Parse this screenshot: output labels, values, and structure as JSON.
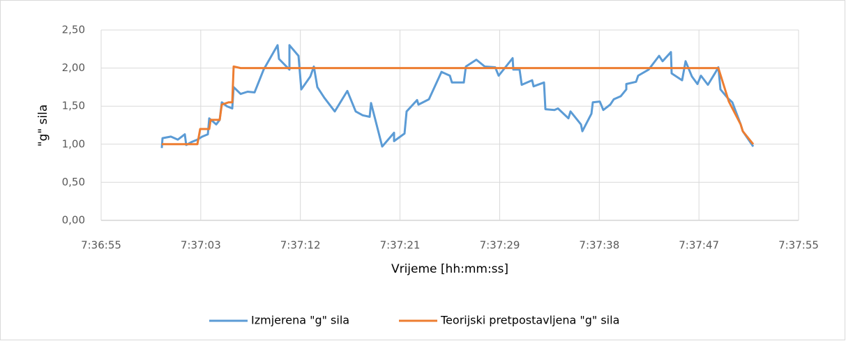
{
  "chart_data": {
    "type": "line",
    "x_label": "Vrijeme [hh:mm:ss]",
    "y_label": "\"g\" sila",
    "xlim": [
      27415,
      27475
    ],
    "xticks": [
      {
        "value": 27415,
        "label": "7:36:55"
      },
      {
        "value": 27423.57,
        "label": "7:37:03"
      },
      {
        "value": 27432.14,
        "label": "7:37:12"
      },
      {
        "value": 27440.71,
        "label": "7:37:21"
      },
      {
        "value": 27449.29,
        "label": "7:37:29"
      },
      {
        "value": 27457.86,
        "label": "7:37:38"
      },
      {
        "value": 27466.43,
        "label": "7:37:47"
      },
      {
        "value": 27475,
        "label": "7:37:55"
      }
    ],
    "ylim": [
      0,
      2.5
    ],
    "yticks": [
      {
        "value": 0,
        "label": "0,00"
      },
      {
        "value": 0.5,
        "label": "0,50"
      },
      {
        "value": 1,
        "label": "1,00"
      },
      {
        "value": 1.5,
        "label": "1,50"
      },
      {
        "value": 2,
        "label": "2,00"
      },
      {
        "value": 2.5,
        "label": "2,50"
      }
    ],
    "grid": true,
    "legend": "bottom",
    "series": [
      {
        "name": "Izmjerena \"g\" sila",
        "color": "#5b9bd5",
        "x": [
          27420.22,
          27420.28,
          27421.0,
          27421.6,
          27422.2,
          27422.32,
          27422.8,
          27423.28,
          27423.7,
          27424.18,
          27424.3,
          27424.9,
          27425.2,
          27425.38,
          27425.8,
          27426.28,
          27426.4,
          27427.0,
          27427.6,
          27428.2,
          27428.98,
          27430.18,
          27430.3,
          27431.2,
          27431.2,
          27431.98,
          27432.22,
          27433.0,
          27433.3,
          27433.6,
          27434.2,
          27435.1,
          27436.18,
          27436.9,
          27437.5,
          27438.1,
          27438.22,
          27439.18,
          27440.2,
          27440.2,
          27441.1,
          27441.28,
          27442.18,
          27442.3,
          27443.2,
          27444.28,
          27445.0,
          27445.18,
          27446.2,
          27446.38,
          27447.28,
          27448.0,
          27448.9,
          27449.2,
          27450.4,
          27450.46,
          27451.0,
          27451.18,
          27452.08,
          27452.2,
          27453.1,
          27453.22,
          27454.0,
          27454.3,
          27455.2,
          27455.38,
          27456.28,
          27456.4,
          27457.18,
          27457.3,
          27457.9,
          27458.2,
          27458.8,
          27459.1,
          27459.7,
          27460.18,
          27460.18,
          27461.02,
          27461.2,
          27462.1,
          27463.0,
          27463.3,
          27464.02,
          27464.08,
          27464.98,
          27465.28,
          27465.82,
          27466.3,
          27466.6,
          27467.2,
          27467.8,
          27468.1,
          27468.28,
          27468.88,
          27469.3,
          27470.02,
          27470.2,
          27471.1
        ],
        "values": [
          0.95,
          1.08,
          1.1,
          1.06,
          1.13,
          0.99,
          1.03,
          1.06,
          1.1,
          1.13,
          1.34,
          1.26,
          1.32,
          1.55,
          1.5,
          1.47,
          1.75,
          1.66,
          1.69,
          1.68,
          1.98,
          2.3,
          2.12,
          1.98,
          2.3,
          2.16,
          1.72,
          1.89,
          2.02,
          1.75,
          1.61,
          1.43,
          1.7,
          1.43,
          1.38,
          1.36,
          1.54,
          0.97,
          1.15,
          1.04,
          1.14,
          1.43,
          1.58,
          1.52,
          1.59,
          1.95,
          1.9,
          1.81,
          1.81,
          2.02,
          2.11,
          2.02,
          2.01,
          1.9,
          2.13,
          1.98,
          1.98,
          1.78,
          1.84,
          1.76,
          1.81,
          1.46,
          1.45,
          1.47,
          1.34,
          1.43,
          1.26,
          1.17,
          1.4,
          1.55,
          1.56,
          1.45,
          1.52,
          1.59,
          1.63,
          1.72,
          1.79,
          1.82,
          1.9,
          1.98,
          2.16,
          2.09,
          2.21,
          1.93,
          1.84,
          2.09,
          1.89,
          1.79,
          1.9,
          1.78,
          1.93,
          2.01,
          1.72,
          1.61,
          1.55,
          1.26,
          1.17,
          0.97
        ]
      },
      {
        "name": "Teorijski pretpostavljena \"g\" sila",
        "color": "#ed7d31",
        "x": [
          27420.22,
          27423.28,
          27423.52,
          27424.3,
          27424.42,
          27425.2,
          27425.38,
          27425.98,
          27426.28,
          27426.4,
          27427.0,
          27468.1,
          27469.0,
          27470.02,
          27470.2,
          27471.1
        ],
        "values": [
          1.0,
          1.0,
          1.2,
          1.2,
          1.32,
          1.32,
          1.52,
          1.55,
          1.55,
          2.02,
          2.0,
          2.0,
          1.56,
          1.26,
          1.17,
          1.0
        ]
      }
    ]
  }
}
